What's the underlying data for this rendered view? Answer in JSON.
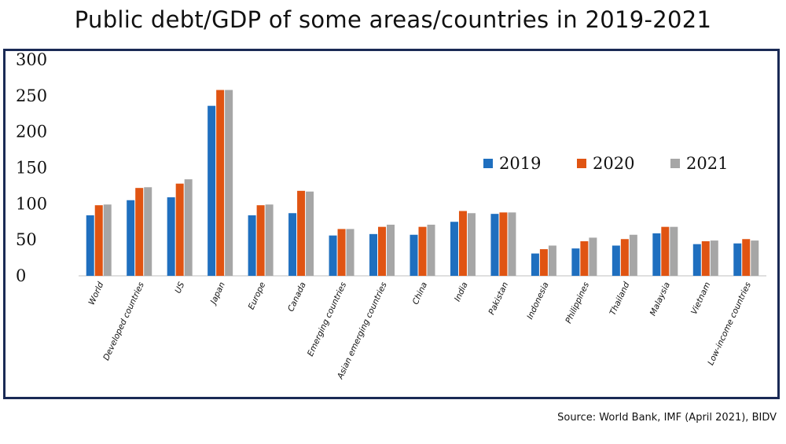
{
  "chart_data": {
    "type": "bar",
    "title": "Public debt/GDP of some areas/countries in 2019-2021",
    "xlabel": "",
    "ylabel": "",
    "ylim": [
      0,
      300
    ],
    "yticks": [
      0,
      50,
      100,
      150,
      200,
      250,
      300
    ],
    "categories": [
      "World",
      "Developed countries",
      "US",
      "Japan",
      "Europe",
      "Canada",
      "Emerging countries",
      "Asian emerging countries",
      "China",
      "India",
      "Pakistan",
      "Indonesia",
      "Philippines",
      "Thailand",
      "Malaysia",
      "Vietnam",
      "Low-income countries"
    ],
    "series": [
      {
        "name": "2019",
        "color": "#1f6fbf",
        "values": [
          84,
          105,
          109,
          236,
          84,
          87,
          56,
          58,
          57,
          75,
          86,
          31,
          38,
          42,
          59,
          44,
          45
        ]
      },
      {
        "name": "2020",
        "color": "#e05412",
        "values": [
          98,
          122,
          128,
          258,
          98,
          118,
          65,
          68,
          68,
          90,
          88,
          37,
          48,
          51,
          68,
          48,
          51
        ]
      },
      {
        "name": "2021",
        "color": "#a6a6a6",
        "values": [
          99,
          123,
          134,
          258,
          99,
          117,
          65,
          71,
          71,
          87,
          88,
          42,
          53,
          57,
          68,
          49,
          49
        ]
      }
    ],
    "legend_position": "right"
  },
  "source": "Source: World Bank, IMF (April 2021), BIDV"
}
